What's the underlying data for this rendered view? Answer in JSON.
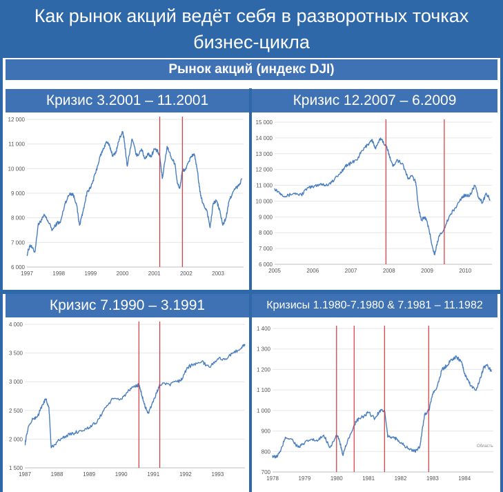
{
  "header": {
    "title_line1": "Как рынок акций ведёт себя в разворотных точках",
    "title_line2": "бизнес-цикла",
    "subtitle": "Рынок акций (индекс DJI)"
  },
  "colors": {
    "line": "#4a7ebf",
    "marker": "#d9343a",
    "panel": "#3f72b4",
    "background": "#2f68a8"
  },
  "chart_data": [
    {
      "type": "line",
      "title": "Кризис 3.2001 – 11.2001",
      "x_ticks": [
        "1997",
        "1998",
        "1999",
        "2000",
        "2001",
        "2002",
        "2003"
      ],
      "y_ticks": [
        "6 000",
        "7 000",
        "8 000",
        "9 000",
        "10 000",
        "11 000",
        "12 000"
      ],
      "xlim": [
        1997.0,
        2003.8
      ],
      "ylim": [
        6000,
        12000
      ],
      "markers": [
        2001.17,
        2001.88
      ],
      "x": [
        1997.0,
        1997.1,
        1997.25,
        1997.35,
        1997.45,
        1997.55,
        1997.65,
        1997.8,
        1997.95,
        1998.05,
        1998.2,
        1998.35,
        1998.45,
        1998.55,
        1998.65,
        1998.75,
        1998.9,
        1999.0,
        1999.15,
        1999.3,
        1999.4,
        1999.5,
        1999.6,
        1999.7,
        1999.8,
        1999.9,
        2000.0,
        2000.05,
        2000.15,
        2000.3,
        2000.45,
        2000.6,
        2000.7,
        2000.8,
        2000.9,
        2001.0,
        2001.1,
        2001.17,
        2001.25,
        2001.4,
        2001.55,
        2001.65,
        2001.72,
        2001.8,
        2001.88,
        2002.0,
        2002.15,
        2002.25,
        2002.35,
        2002.45,
        2002.55,
        2002.65,
        2002.75,
        2002.85,
        2002.95,
        2003.05,
        2003.15,
        2003.25,
        2003.35,
        2003.45,
        2003.55,
        2003.65,
        2003.75
      ],
      "y": [
        6500,
        6900,
        6600,
        7700,
        7900,
        8100,
        7900,
        7500,
        7800,
        7800,
        8600,
        9000,
        8950,
        8600,
        7700,
        8200,
        9100,
        9200,
        9800,
        10500,
        10800,
        11100,
        10900,
        10500,
        10700,
        11200,
        11500,
        11200,
        10100,
        11200,
        10500,
        10800,
        10400,
        10600,
        10500,
        10800,
        10700,
        10500,
        9600,
        10900,
        10400,
        10200,
        9400,
        9200,
        9900,
        10000,
        10500,
        10600,
        9900,
        8900,
        8500,
        8300,
        7600,
        8600,
        8700,
        8300,
        7700,
        8000,
        8700,
        9000,
        9200,
        9300,
        9600
      ]
    },
    {
      "type": "line",
      "title": "Кризис 12.2007 – 6.2009",
      "x_ticks": [
        "2005",
        "2006",
        "2007",
        "2008",
        "2009",
        "2010"
      ],
      "y_ticks": [
        "6 000",
        "7 000",
        "8 000",
        "9 000",
        "10 000",
        "11 000",
        "12 000",
        "13 000",
        "14 000",
        "15 000"
      ],
      "xlim": [
        2005.0,
        2010.7
      ],
      "ylim": [
        6000,
        15000
      ],
      "markers": [
        2007.92,
        2009.45
      ],
      "x": [
        2005.0,
        2005.15,
        2005.3,
        2005.5,
        2005.7,
        2005.85,
        2006.0,
        2006.2,
        2006.35,
        2006.5,
        2006.7,
        2006.85,
        2007.0,
        2007.15,
        2007.3,
        2007.45,
        2007.55,
        2007.65,
        2007.78,
        2007.92,
        2008.0,
        2008.1,
        2008.2,
        2008.35,
        2008.5,
        2008.6,
        2008.7,
        2008.78,
        2008.85,
        2008.95,
        2009.05,
        2009.15,
        2009.2,
        2009.3,
        2009.45,
        2009.6,
        2009.75,
        2009.9,
        2010.0,
        2010.1,
        2010.25,
        2010.35,
        2010.45,
        2010.55,
        2010.65
      ],
      "y": [
        10800,
        10500,
        10300,
        10500,
        10400,
        10800,
        10900,
        11100,
        11000,
        11200,
        11700,
        12200,
        12400,
        12600,
        13200,
        13600,
        13900,
        13300,
        14000,
        13500,
        13000,
        12200,
        12600,
        12400,
        11400,
        11600,
        11200,
        9500,
        8800,
        9000,
        8200,
        7000,
        6600,
        7700,
        8300,
        9100,
        9600,
        10200,
        10400,
        10300,
        11000,
        10200,
        9900,
        10500,
        10100
      ]
    },
    {
      "type": "line",
      "title": "Кризис 7.1990 – 3.1991",
      "x_ticks": [
        "1987",
        "1988",
        "1989",
        "1990",
        "1991",
        "1992",
        "1993"
      ],
      "y_ticks": [
        "1 500",
        "2 000",
        "2 500",
        "3 000",
        "3 500",
        "4 000"
      ],
      "xlim": [
        1987.0,
        1993.85
      ],
      "ylim": [
        1500,
        4000
      ],
      "markers": [
        1990.55,
        1991.2
      ],
      "x": [
        1987.0,
        1987.1,
        1987.25,
        1987.4,
        1987.55,
        1987.65,
        1987.75,
        1987.82,
        1988.0,
        1988.25,
        1988.5,
        1988.75,
        1989.0,
        1989.25,
        1989.5,
        1989.75,
        1990.0,
        1990.25,
        1990.45,
        1990.55,
        1990.65,
        1990.75,
        1990.85,
        1990.95,
        1991.1,
        1991.2,
        1991.5,
        1991.75,
        1991.9,
        1992.05,
        1992.25,
        1992.5,
        1992.75,
        1993.0,
        1993.25,
        1993.5,
        1993.75,
        1993.85
      ],
      "y": [
        1900,
        2200,
        2350,
        2400,
        2600,
        2700,
        2550,
        1850,
        1950,
        2050,
        2100,
        2150,
        2200,
        2300,
        2550,
        2700,
        2700,
        2850,
        2920,
        2950,
        2750,
        2550,
        2450,
        2600,
        2800,
        2950,
        2950,
        3000,
        3050,
        3250,
        3300,
        3350,
        3250,
        3400,
        3400,
        3500,
        3600,
        3650
      ]
    },
    {
      "type": "line",
      "title": "Кризисы 1.1980-7.1980 & 7.1981 – 11.1982",
      "x_ticks": [
        "1978",
        "1979",
        "1980",
        "1981",
        "1982",
        "1983",
        "1984"
      ],
      "y_ticks": [
        "700",
        "800",
        "900",
        "1 000",
        "1 100",
        "1 200",
        "1 300",
        "1 400"
      ],
      "xlim": [
        1978.0,
        1984.9
      ],
      "ylim": [
        700,
        1400
      ],
      "markers": [
        1980.0,
        1980.55,
        1981.5,
        1982.88
      ],
      "annotation": "Область",
      "x": [
        1978.0,
        1978.1,
        1978.25,
        1978.4,
        1978.6,
        1978.8,
        1979.0,
        1979.2,
        1979.4,
        1979.6,
        1979.8,
        1980.0,
        1980.1,
        1980.2,
        1980.3,
        1980.55,
        1980.7,
        1980.85,
        1981.0,
        1981.2,
        1981.35,
        1981.5,
        1981.6,
        1981.75,
        1981.9,
        1982.1,
        1982.3,
        1982.45,
        1982.6,
        1982.75,
        1982.88,
        1983.0,
        1983.15,
        1983.3,
        1983.45,
        1983.6,
        1983.75,
        1983.9,
        1984.0,
        1984.1,
        1984.2,
        1984.35,
        1984.5,
        1984.6,
        1984.7,
        1984.85
      ],
      "y": [
        780,
        770,
        800,
        870,
        860,
        820,
        840,
        860,
        850,
        880,
        820,
        880,
        850,
        780,
        830,
        930,
        960,
        970,
        990,
        960,
        1000,
        1000,
        870,
        870,
        860,
        830,
        810,
        800,
        820,
        980,
        1000,
        1080,
        1120,
        1200,
        1220,
        1250,
        1260,
        1240,
        1180,
        1150,
        1120,
        1100,
        1160,
        1210,
        1220,
        1190
      ]
    }
  ]
}
